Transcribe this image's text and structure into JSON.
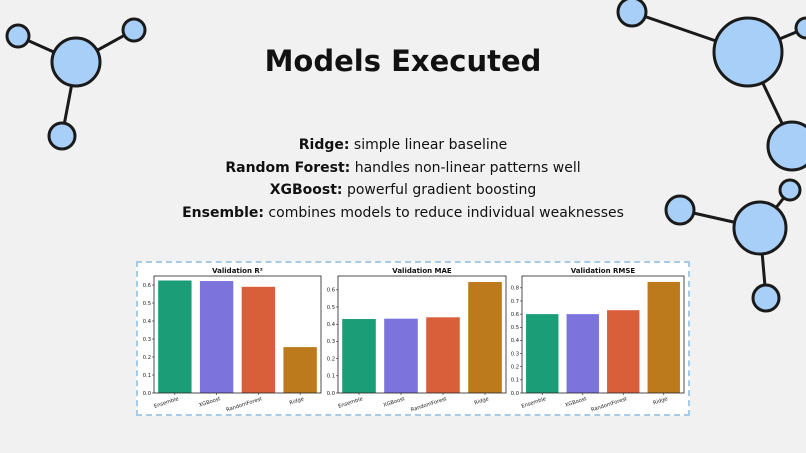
{
  "slide": {
    "title": "Models Executed",
    "bullets": [
      {
        "term": "Ridge:",
        "desc": " simple linear baseline"
      },
      {
        "term": "Random Forest:",
        "desc": " handles non-linear patterns well"
      },
      {
        "term": "XGBoost:",
        "desc": " powerful gradient boosting"
      },
      {
        "term": "Ensemble:",
        "desc": " combines models to reduce individual weaknesses"
      }
    ]
  },
  "colors": {
    "Ensemble": "#1b9e77",
    "XGBoost": "#7d73dd",
    "RandomForest": "#d95f3b",
    "Ridge": "#bd7a1c",
    "node_fill": "#a8cff7",
    "node_stroke": "#1a1a1a"
  },
  "chart_data": [
    {
      "type": "bar",
      "title": "Validation R²",
      "categories": [
        "Ensemble",
        "XGBoost",
        "RandomForest",
        "Ridge"
      ],
      "values": [
        0.625,
        0.622,
        0.59,
        0.255
      ],
      "ylim": [
        0,
        0.65
      ],
      "yticks": [
        0.0,
        0.1,
        0.2,
        0.3,
        0.4,
        0.5,
        0.6
      ],
      "ytick_labels": [
        "0.0",
        "0.1",
        "0.2",
        "0.3",
        "0.4",
        "0.5",
        "0.6"
      ],
      "grid": false
    },
    {
      "type": "bar",
      "title": "Validation MAE",
      "categories": [
        "Ensemble",
        "XGBoost",
        "RandomForest",
        "Ridge"
      ],
      "values": [
        0.43,
        0.432,
        0.44,
        0.645
      ],
      "ylim": [
        0,
        0.68
      ],
      "yticks": [
        0.0,
        0.1,
        0.2,
        0.3,
        0.4,
        0.5,
        0.6
      ],
      "ytick_labels": [
        "0.0",
        "0.1",
        "0.2",
        "0.3",
        "0.4",
        "0.5",
        "0.6"
      ],
      "grid": false
    },
    {
      "type": "bar",
      "title": "Validation RMSE",
      "categories": [
        "Ensemble",
        "XGBoost",
        "RandomForest",
        "Ridge"
      ],
      "values": [
        0.6,
        0.6,
        0.63,
        0.845
      ],
      "ylim": [
        0,
        0.89
      ],
      "yticks": [
        0.0,
        0.1,
        0.2,
        0.3,
        0.4,
        0.5,
        0.6,
        0.7,
        0.8
      ],
      "ytick_labels": [
        "0.0",
        "0.1",
        "0.2",
        "0.3",
        "0.4",
        "0.5",
        "0.6",
        "0.7",
        "0.8"
      ],
      "grid": false
    }
  ]
}
